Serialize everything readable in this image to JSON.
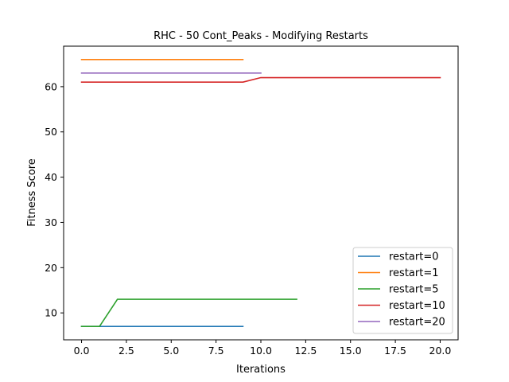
{
  "chart_data": {
    "type": "line",
    "title": "RHC - 50 Cont_Peaks - Modifying Restarts",
    "xlabel": "Iterations",
    "ylabel": "Fitness Score",
    "xlim": [
      -1.0,
      21.0
    ],
    "ylim": [
      4.05,
      68.95
    ],
    "xticks": [
      0.0,
      2.5,
      5.0,
      7.5,
      10.0,
      12.5,
      15.0,
      17.5,
      20.0
    ],
    "xtick_labels": [
      "0.0",
      "2.5",
      "5.0",
      "7.5",
      "10.0",
      "12.5",
      "15.0",
      "17.5",
      "20.0"
    ],
    "yticks": [
      10,
      20,
      30,
      40,
      50,
      60
    ],
    "ytick_labels": [
      "10",
      "20",
      "30",
      "40",
      "50",
      "60"
    ],
    "grid": false,
    "legend_position": "lower-right",
    "series": [
      {
        "name": "restart=0",
        "color": "#1f77b4",
        "x": [
          0,
          1,
          2,
          3,
          4,
          5,
          6,
          7,
          8,
          9
        ],
        "y": [
          7,
          7,
          7,
          7,
          7,
          7,
          7,
          7,
          7,
          7
        ]
      },
      {
        "name": "restart=1",
        "color": "#ff7f0e",
        "x": [
          0,
          1,
          2,
          3,
          4,
          5,
          6,
          7,
          8,
          9
        ],
        "y": [
          66,
          66,
          66,
          66,
          66,
          66,
          66,
          66,
          66,
          66
        ]
      },
      {
        "name": "restart=5",
        "color": "#2ca02c",
        "x": [
          0,
          1,
          2,
          3,
          4,
          5,
          6,
          7,
          8,
          9,
          10,
          11,
          12
        ],
        "y": [
          7,
          7,
          13,
          13,
          13,
          13,
          13,
          13,
          13,
          13,
          13,
          13,
          13
        ]
      },
      {
        "name": "restart=10",
        "color": "#d62728",
        "x": [
          0,
          1,
          2,
          3,
          4,
          5,
          6,
          7,
          8,
          9,
          10,
          11,
          12,
          13,
          14,
          15,
          16,
          17,
          18,
          19,
          20
        ],
        "y": [
          61,
          61,
          61,
          61,
          61,
          61,
          61,
          61,
          61,
          61,
          62,
          62,
          62,
          62,
          62,
          62,
          62,
          62,
          62,
          62,
          62
        ]
      },
      {
        "name": "restart=20",
        "color": "#9467bd",
        "x": [
          0,
          1,
          2,
          3,
          4,
          5,
          6,
          7,
          8,
          9,
          10
        ],
        "y": [
          63,
          63,
          63,
          63,
          63,
          63,
          63,
          63,
          63,
          63,
          63
        ]
      }
    ]
  }
}
